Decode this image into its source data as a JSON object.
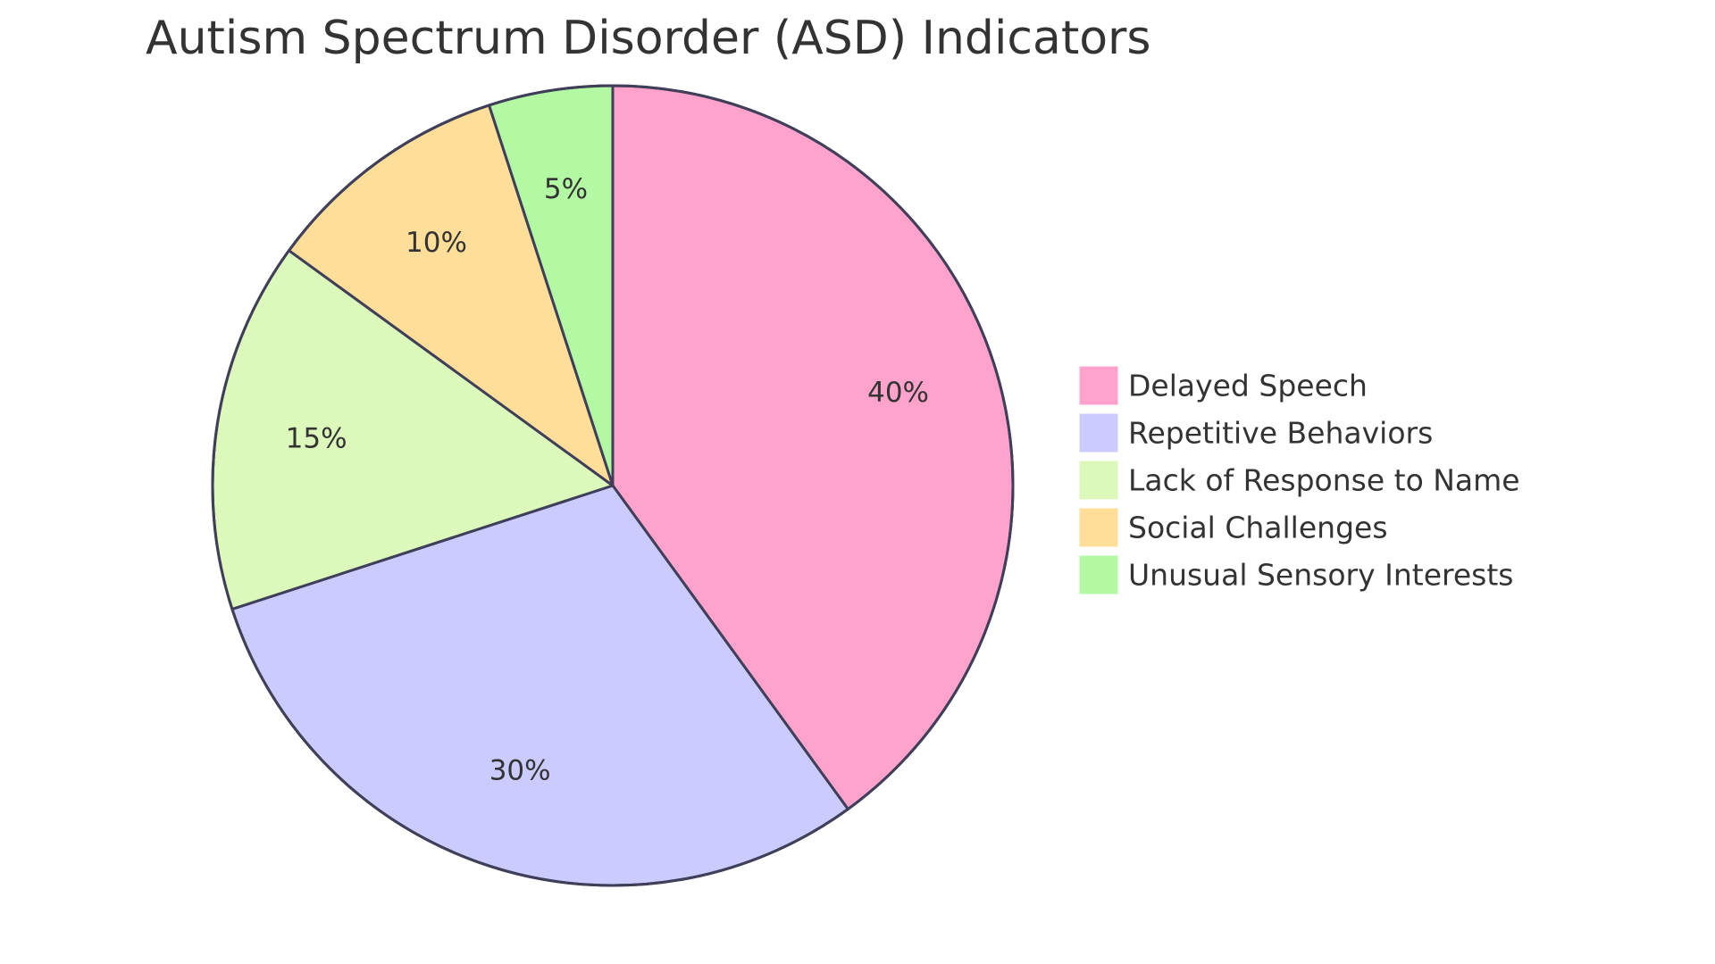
{
  "chart_data": {
    "type": "pie",
    "title": "Autism Spectrum Disorder (ASD) Indicators",
    "slices": [
      {
        "label": "Delayed Speech",
        "value": 40,
        "display": "40%",
        "color": "#ffa3cc"
      },
      {
        "label": "Repetitive Behaviors",
        "value": 30,
        "display": "30%",
        "color": "#cccbff"
      },
      {
        "label": "Lack of Response to Name",
        "value": 15,
        "display": "15%",
        "color": "#dcf9bb"
      },
      {
        "label": "Social Challenges",
        "value": 10,
        "display": "10%",
        "color": "#ffde99"
      },
      {
        "label": "Unusual Sensory Interests",
        "value": 5,
        "display": "5%",
        "color": "#b3f9a3"
      }
    ],
    "start_angle": "top",
    "direction": "clockwise",
    "legend_position": "right"
  }
}
